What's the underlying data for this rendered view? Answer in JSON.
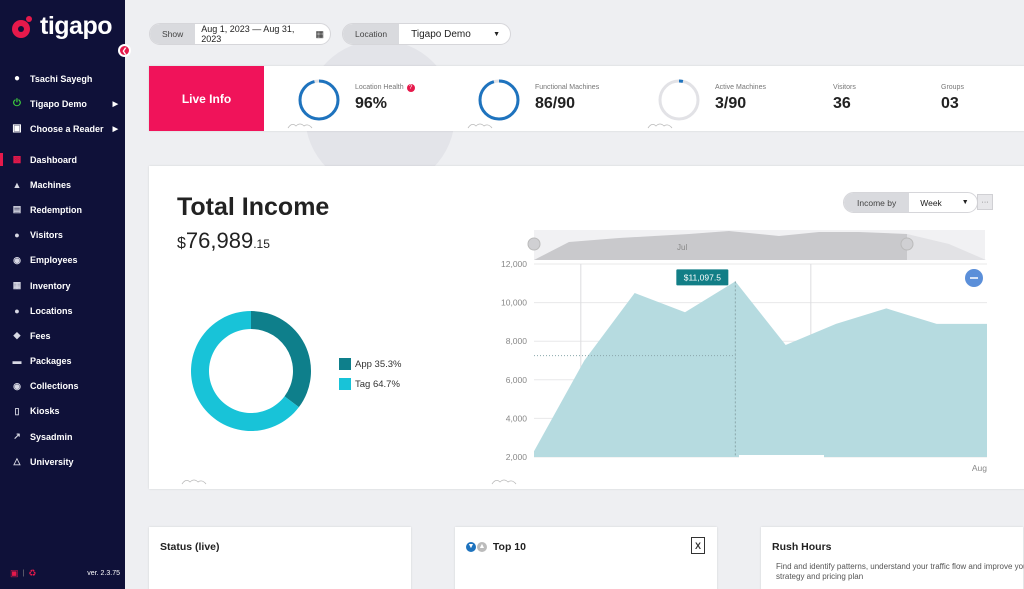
{
  "app": {
    "logo": "tigapo",
    "version": "ver. 2.3.75"
  },
  "sidebar": {
    "user": "Tsachi Sayegh",
    "location": "Tigapo Demo",
    "reader": "Choose a Reader",
    "items": [
      {
        "label": "Dashboard",
        "icon": "chart-bars-icon"
      },
      {
        "label": "Machines",
        "icon": "joystick-icon"
      },
      {
        "label": "Redemption",
        "icon": "gift-icon"
      },
      {
        "label": "Visitors",
        "icon": "people-icon"
      },
      {
        "label": "Employees",
        "icon": "person-badge-icon"
      },
      {
        "label": "Inventory",
        "icon": "grid-icon"
      },
      {
        "label": "Locations",
        "icon": "location-pin-icon"
      },
      {
        "label": "Fees",
        "icon": "tag-icon"
      },
      {
        "label": "Packages",
        "icon": "ticket-icon"
      },
      {
        "label": "Collections",
        "icon": "coin-icon"
      },
      {
        "label": "Kiosks",
        "icon": "kiosk-icon"
      },
      {
        "label": "Sysadmin",
        "icon": "external-edit-icon"
      },
      {
        "label": "University",
        "icon": "graduation-icon"
      }
    ]
  },
  "filters": {
    "show_label": "Show",
    "date_range": "Aug 1, 2023 — Aug 31, 2023",
    "location_label": "Location",
    "location_value": "Tigapo Demo"
  },
  "live_info": {
    "title": "Live Info",
    "stats": [
      {
        "label": "Location Health",
        "value": "96%",
        "fraction": 0.96
      },
      {
        "label": "Functional Machines",
        "value": "86/90",
        "fraction": 0.955
      },
      {
        "label": "Active Machines",
        "value": "3/90",
        "fraction": 0.033
      },
      {
        "label": "Visitors",
        "value": "36"
      },
      {
        "label": "Groups",
        "value": "03"
      }
    ]
  },
  "income": {
    "title": "Total Income",
    "currency": "$",
    "amount": "76,989",
    "cents": ".15",
    "group_label": "Income by",
    "group_value": "Week",
    "more": "···"
  },
  "chart_data": [
    {
      "type": "pie",
      "categories": [
        "App 35.3%",
        "Tag 64.7%"
      ],
      "values": [
        35.3,
        64.7
      ],
      "colors": [
        "#0e7f8b",
        "#18c3d8"
      ]
    },
    {
      "type": "area",
      "x_start": "Jul",
      "x_end": "Aug",
      "x": [
        0,
        1,
        2,
        3,
        4,
        5,
        6,
        7,
        8,
        9
      ],
      "values": [
        2300,
        7000,
        10500,
        9500,
        11100,
        7800,
        8900,
        9700,
        8900,
        8900
      ],
      "y_ticks": [
        "12,000",
        "10,000",
        "8,000",
        "6,000",
        "4,000",
        "2,000"
      ],
      "ylim": [
        2000,
        12000
      ],
      "tooltip": "$11,097.5",
      "color": "#b6dbe0"
    }
  ],
  "status_card": {
    "title": "Status (live)"
  },
  "top10_card": {
    "title": "Top 10"
  },
  "rush_card": {
    "title": "Rush Hours",
    "description": "Find and identify patterns, understand your traffic flow and improve your strategy and pricing plan"
  }
}
